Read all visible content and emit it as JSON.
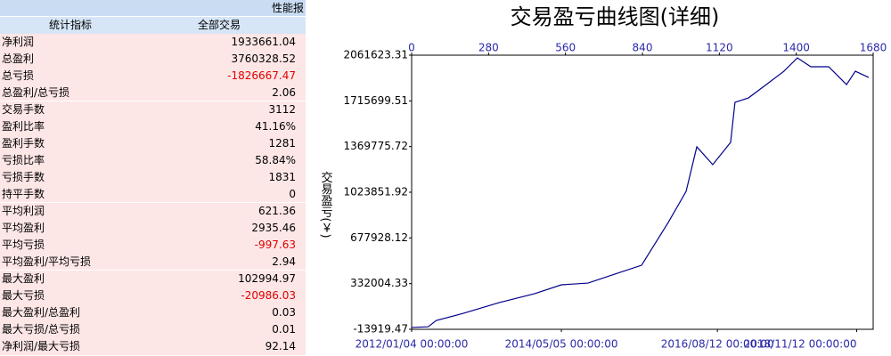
{
  "panel": {
    "tab": "性能报",
    "headers": [
      "统计指标",
      "全部交易"
    ],
    "rows": [
      [
        "净利润",
        "1933661.04"
      ],
      [
        "总盈利",
        "3760328.52"
      ],
      [
        "总亏损",
        "-1826667.47"
      ],
      [
        "总盈利/总亏损",
        "2.06"
      ],
      [
        "交易手数",
        "3112"
      ],
      [
        "盈利比率",
        "41.16%"
      ],
      [
        "盈利手数",
        "1281"
      ],
      [
        "亏损比率",
        "58.84%"
      ],
      [
        "亏损手数",
        "1831"
      ],
      [
        "持平手数",
        "0"
      ],
      [
        "平均利润",
        "621.36"
      ],
      [
        "平均盈利",
        "2935.46"
      ],
      [
        "平均亏损",
        "-997.63"
      ],
      [
        "平均盈利/平均亏损",
        "2.94"
      ],
      [
        "最大盈利",
        "102994.97"
      ],
      [
        "最大亏损",
        "-20986.03"
      ],
      [
        "最大盈利/总盈利",
        "0.03"
      ],
      [
        "最大亏损/总亏损",
        "0.01"
      ],
      [
        "净利润/最大亏损",
        "92.14"
      ]
    ]
  },
  "chart_data": {
    "type": "line",
    "title": "交易盈亏曲线图(详细)",
    "y_label": "交易盈亏(￥)",
    "x": [
      0,
      60,
      90,
      188,
      318,
      448,
      545,
      642,
      740,
      837,
      853,
      934,
      999,
      1038,
      1096,
      1161,
      1177,
      1226,
      1291,
      1355,
      1404,
      1453,
      1518,
      1583,
      1615,
      1664
    ],
    "series": [
      {
        "name": "交易盈亏",
        "color": "#00008b",
        "values": [
          0,
          5000,
          53000,
          107000,
          188000,
          256000,
          323000,
          336000,
          404000,
          471000,
          525000,
          795000,
          1030000,
          1368000,
          1233000,
          1401000,
          1705000,
          1738000,
          1839000,
          1940000,
          2041000,
          1974000,
          1974000,
          1839000,
          1940000,
          1893000
        ]
      }
    ],
    "xlim": [
      0,
      1680
    ],
    "xticks": [
      0,
      280,
      560,
      840,
      1120,
      1400,
      1680
    ],
    "x2ticks": [
      {
        "value": 0,
        "label": "2012/01/04 00:00:00"
      },
      {
        "value": 545,
        "label": "2014/05/05 00:00:00"
      },
      {
        "value": 1113,
        "label": "2016/08/12 00:00:00"
      },
      {
        "value": 1620,
        "label": "2018/11/12 00:00:00"
      }
    ],
    "ylim": [
      -13919.47,
      2061623.31
    ],
    "yticks": [
      -13919.47,
      332004.33,
      677928.12,
      1023851.92,
      1369775.72,
      1715699.51,
      2061623.31
    ]
  }
}
